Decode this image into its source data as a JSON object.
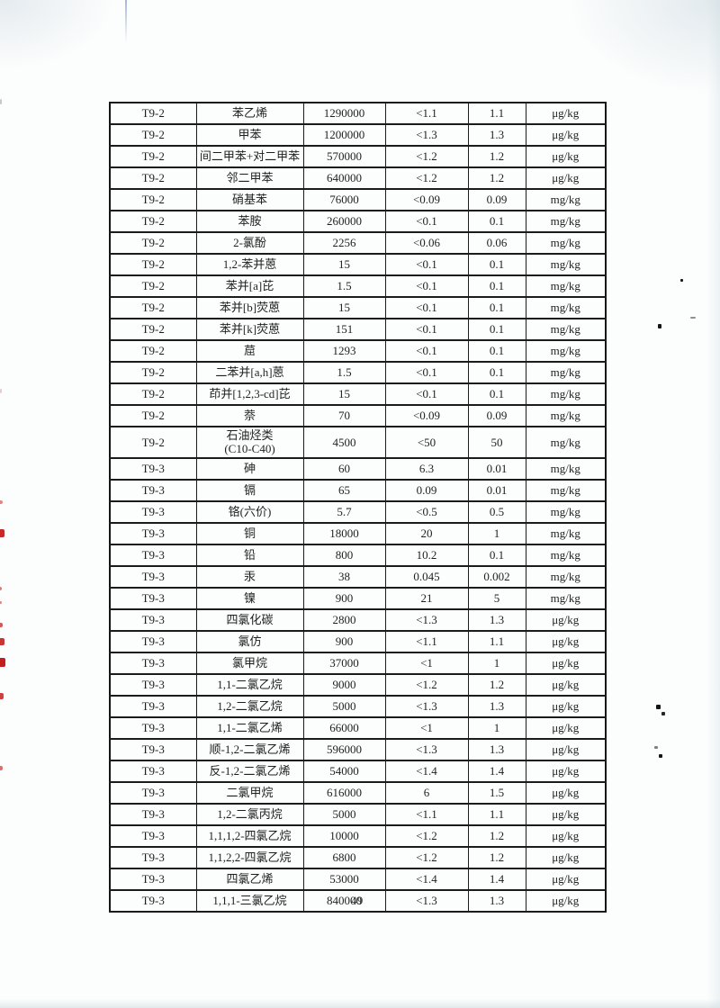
{
  "page": {
    "number": "49"
  },
  "colors": {
    "paper": "#fcfdfd",
    "table_border": "#1b1b1b",
    "text": "#1f1f1f",
    "stamp_red": "#c01212"
  },
  "table": {
    "rows": [
      [
        "T9-2",
        "苯乙烯",
        "1290000",
        "<1.1",
        "1.1",
        "μg/kg"
      ],
      [
        "T9-2",
        "甲苯",
        "1200000",
        "<1.3",
        "1.3",
        "μg/kg"
      ],
      [
        "T9-2",
        "间二甲苯+对二甲苯",
        "570000",
        "<1.2",
        "1.2",
        "μg/kg"
      ],
      [
        "T9-2",
        "邻二甲苯",
        "640000",
        "<1.2",
        "1.2",
        "μg/kg"
      ],
      [
        "T9-2",
        "硝基苯",
        "76000",
        "<0.09",
        "0.09",
        "mg/kg"
      ],
      [
        "T9-2",
        "苯胺",
        "260000",
        "<0.1",
        "0.1",
        "mg/kg"
      ],
      [
        "T9-2",
        "2-氯酚",
        "2256",
        "<0.06",
        "0.06",
        "mg/kg"
      ],
      [
        "T9-2",
        "1,2-苯并蒽",
        "15",
        "<0.1",
        "0.1",
        "mg/kg"
      ],
      [
        "T9-2",
        "苯并[a]芘",
        "1.5",
        "<0.1",
        "0.1",
        "mg/kg"
      ],
      [
        "T9-2",
        "苯并[b]荧蒽",
        "15",
        "<0.1",
        "0.1",
        "mg/kg"
      ],
      [
        "T9-2",
        "苯并[k]荧蒽",
        "151",
        "<0.1",
        "0.1",
        "mg/kg"
      ],
      [
        "T9-2",
        "䓛",
        "1293",
        "<0.1",
        "0.1",
        "mg/kg"
      ],
      [
        "T9-2",
        "二苯并[a,h]蒽",
        "1.5",
        "<0.1",
        "0.1",
        "mg/kg"
      ],
      [
        "T9-2",
        "茚并[1,2,3-cd]芘",
        "15",
        "<0.1",
        "0.1",
        "mg/kg"
      ],
      [
        "T9-2",
        "萘",
        "70",
        "<0.09",
        "0.09",
        "mg/kg"
      ],
      [
        "T9-2",
        "石油烃类\n(C10-C40)",
        "4500",
        "<50",
        "50",
        "mg/kg"
      ],
      [
        "T9-3",
        "砷",
        "60",
        "6.3",
        "0.01",
        "mg/kg"
      ],
      [
        "T9-3",
        "镉",
        "65",
        "0.09",
        "0.01",
        "mg/kg"
      ],
      [
        "T9-3",
        "铬(六价)",
        "5.7",
        "<0.5",
        "0.5",
        "mg/kg"
      ],
      [
        "T9-3",
        "铜",
        "18000",
        "20",
        "1",
        "mg/kg"
      ],
      [
        "T9-3",
        "铅",
        "800",
        "10.2",
        "0.1",
        "mg/kg"
      ],
      [
        "T9-3",
        "汞",
        "38",
        "0.045",
        "0.002",
        "mg/kg"
      ],
      [
        "T9-3",
        "镍",
        "900",
        "21",
        "5",
        "mg/kg"
      ],
      [
        "T9-3",
        "四氯化碳",
        "2800",
        "<1.3",
        "1.3",
        "μg/kg"
      ],
      [
        "T9-3",
        "氯仿",
        "900",
        "<1.1",
        "1.1",
        "μg/kg"
      ],
      [
        "T9-3",
        "氯甲烷",
        "37000",
        "<1",
        "1",
        "μg/kg"
      ],
      [
        "T9-3",
        "1,1-二氯乙烷",
        "9000",
        "<1.2",
        "1.2",
        "μg/kg"
      ],
      [
        "T9-3",
        "1,2-二氯乙烷",
        "5000",
        "<1.3",
        "1.3",
        "μg/kg"
      ],
      [
        "T9-3",
        "1,1-二氯乙烯",
        "66000",
        "<1",
        "1",
        "μg/kg"
      ],
      [
        "T9-3",
        "顺-1,2-二氯乙烯",
        "596000",
        "<1.3",
        "1.3",
        "μg/kg"
      ],
      [
        "T9-3",
        "反-1,2-二氯乙烯",
        "54000",
        "<1.4",
        "1.4",
        "μg/kg"
      ],
      [
        "T9-3",
        "二氯甲烷",
        "616000",
        "6",
        "1.5",
        "μg/kg"
      ],
      [
        "T9-3",
        "1,2-二氯丙烷",
        "5000",
        "<1.1",
        "1.1",
        "μg/kg"
      ],
      [
        "T9-3",
        "1,1,1,2-四氯乙烷",
        "10000",
        "<1.2",
        "1.2",
        "μg/kg"
      ],
      [
        "T9-3",
        "1,1,2,2-四氯乙烷",
        "6800",
        "<1.2",
        "1.2",
        "μg/kg"
      ],
      [
        "T9-3",
        "四氯乙烯",
        "53000",
        "<1.4",
        "1.4",
        "μg/kg"
      ],
      [
        "T9-3",
        "1,1,1-三氯乙烷",
        "840000",
        "<1.3",
        "1.3",
        "μg/kg"
      ]
    ]
  }
}
